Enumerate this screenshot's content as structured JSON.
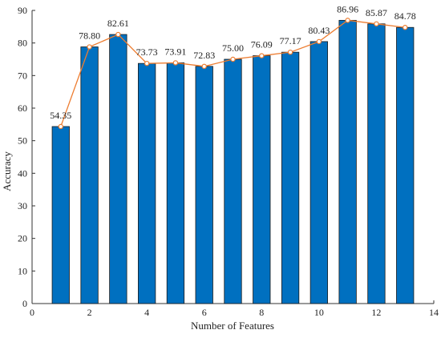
{
  "chart_data": {
    "type": "bar",
    "title": "",
    "xlabel": "Number of Features",
    "ylabel": "Accuracy",
    "xlim": [
      0,
      14
    ],
    "ylim": [
      0,
      90
    ],
    "xticks": [
      0,
      2,
      4,
      6,
      8,
      10,
      12,
      14
    ],
    "yticks": [
      0,
      10,
      20,
      30,
      40,
      50,
      60,
      70,
      80,
      90
    ],
    "x": [
      1,
      2,
      3,
      4,
      5,
      6,
      7,
      8,
      9,
      10,
      11,
      12,
      13
    ],
    "values": [
      54.35,
      78.8,
      82.61,
      73.73,
      73.91,
      72.83,
      75.0,
      76.09,
      77.17,
      80.43,
      86.96,
      85.87,
      84.78
    ],
    "data_labels": [
      "54.35",
      "78.80",
      "82.61",
      "73.73",
      "73.91",
      "72.83",
      "75.00",
      "76.09",
      "77.17",
      "80.43",
      "86.96",
      "85.87",
      "84.78"
    ],
    "overlay": "line-with-markers",
    "grid": false,
    "legend": "none",
    "colors": {
      "bar": "#0070C0",
      "bar_edge": "#1a1a1a",
      "line": "#ED7D31",
      "axis": "#333333"
    }
  }
}
